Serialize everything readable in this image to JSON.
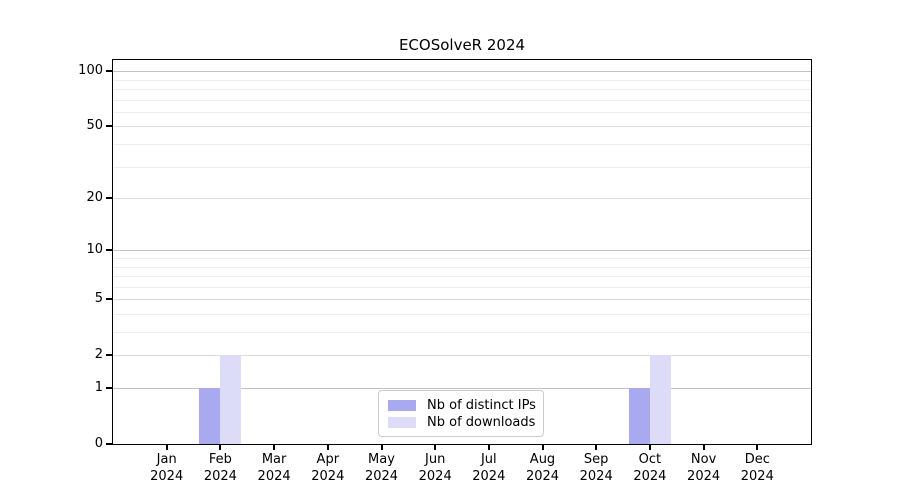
{
  "title": "ECOSolveR 2024",
  "chart_data": {
    "type": "bar",
    "title": "ECOSolveR 2024",
    "categories": [
      {
        "month": "Jan",
        "year": "2024"
      },
      {
        "month": "Feb",
        "year": "2024"
      },
      {
        "month": "Mar",
        "year": "2024"
      },
      {
        "month": "Apr",
        "year": "2024"
      },
      {
        "month": "May",
        "year": "2024"
      },
      {
        "month": "Jun",
        "year": "2024"
      },
      {
        "month": "Jul",
        "year": "2024"
      },
      {
        "month": "Aug",
        "year": "2024"
      },
      {
        "month": "Sep",
        "year": "2024"
      },
      {
        "month": "Oct",
        "year": "2024"
      },
      {
        "month": "Nov",
        "year": "2024"
      },
      {
        "month": "Dec",
        "year": "2024"
      }
    ],
    "series": [
      {
        "name": "Nb of distinct IPs",
        "color": "#a9a9f0",
        "values": [
          0,
          1,
          0,
          0,
          0,
          0,
          0,
          0,
          0,
          1,
          0,
          0
        ]
      },
      {
        "name": "Nb of downloads",
        "color": "#dcdcf8",
        "values": [
          0,
          2,
          0,
          0,
          0,
          0,
          0,
          0,
          0,
          2,
          0,
          0
        ]
      }
    ],
    "y_axis": {
      "scale": "log1p",
      "major_ticks": [
        0,
        1,
        2,
        5,
        10,
        20,
        50,
        100
      ],
      "minor_ticks": [
        3,
        4,
        6,
        7,
        8,
        9,
        30,
        40,
        60,
        70,
        80,
        90
      ],
      "ylim": [
        0,
        115
      ]
    },
    "legend": {
      "position": "lower center",
      "entries": [
        "Nb of distinct IPs",
        "Nb of downloads"
      ]
    },
    "grid": {
      "decade_line_color": "#c2c2c2",
      "major_line_color": "#dcdcdc",
      "minor_line_color": "#ededed"
    }
  }
}
